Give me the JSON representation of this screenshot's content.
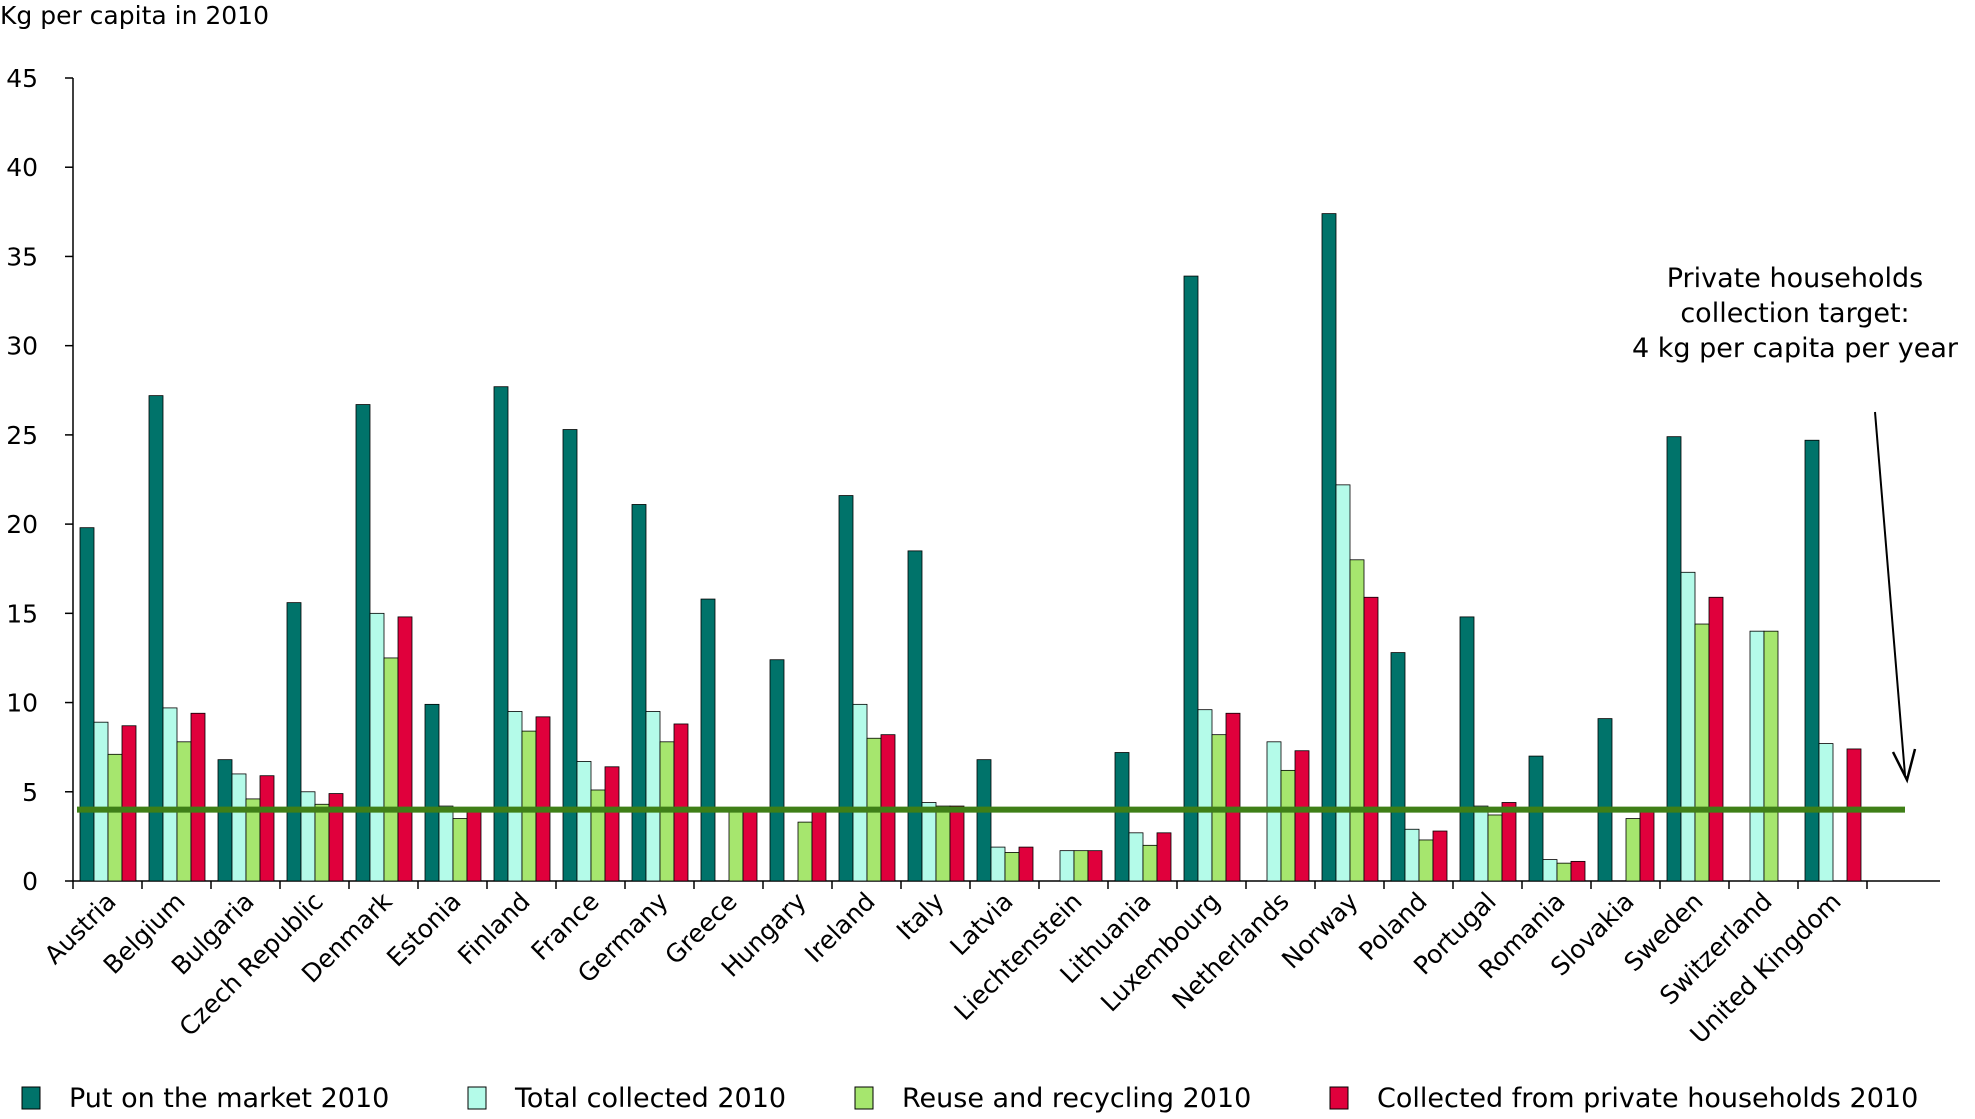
{
  "chart_data": {
    "type": "bar",
    "ylabel": "Kg per capita in 2010",
    "ylim": [
      0,
      45
    ],
    "yticks": [
      0,
      5,
      10,
      15,
      20,
      25,
      30,
      35,
      40,
      45
    ],
    "grid": false,
    "legend_position": "bottom",
    "categories": [
      "Austria",
      "Belgium",
      "Bulgaria",
      "Czech Republic",
      "Denmark",
      "Estonia",
      "Finland",
      "France",
      "Germany",
      "Greece",
      "Hungary",
      "Ireland",
      "Italy",
      "Latvia",
      "Liechtenstein",
      "Lithuania",
      "Luxembourg",
      "Netherlands",
      "Norway",
      "Poland",
      "Portugal",
      "Romania",
      "Slovakia",
      "Sweden",
      "Switzerland",
      "United Kingdom"
    ],
    "series": [
      {
        "name": "Put on the market 2010",
        "color": "#00736a",
        "values": [
          19.8,
          27.2,
          6.8,
          15.6,
          26.7,
          9.9,
          27.7,
          25.3,
          21.1,
          15.8,
          12.4,
          21.6,
          18.5,
          6.8,
          null,
          7.2,
          33.9,
          null,
          37.4,
          12.8,
          14.8,
          7.0,
          9.1,
          24.9,
          null,
          24.7
        ]
      },
      {
        "name": "Total collected 2010",
        "color": "#b4fbe9",
        "values": [
          8.9,
          9.7,
          6.0,
          5.0,
          15.0,
          4.2,
          9.5,
          6.7,
          9.5,
          null,
          null,
          9.9,
          4.4,
          1.9,
          1.7,
          2.7,
          9.6,
          7.8,
          22.2,
          2.9,
          4.2,
          1.2,
          null,
          17.3,
          14.0,
          7.7
        ]
      },
      {
        "name": "Reuse and recycling 2010",
        "color": "#a6e66e",
        "values": [
          7.1,
          7.8,
          4.6,
          4.3,
          12.5,
          3.5,
          8.4,
          5.1,
          7.8,
          4.0,
          3.3,
          8.0,
          4.2,
          1.6,
          1.7,
          2.0,
          8.2,
          6.2,
          18.0,
          2.3,
          3.7,
          1.0,
          3.5,
          14.4,
          14.0,
          null
        ]
      },
      {
        "name": "Collected from private households 2010",
        "color": "#e0003c",
        "values": [
          8.7,
          9.4,
          5.9,
          4.9,
          14.8,
          4.1,
          9.2,
          6.4,
          8.8,
          4.0,
          4.0,
          8.2,
          4.2,
          1.9,
          1.7,
          2.7,
          9.4,
          7.3,
          15.9,
          2.8,
          4.4,
          1.1,
          4.0,
          15.9,
          null,
          7.4
        ]
      }
    ],
    "target_line": {
      "value": 4,
      "color": "#3f7f17"
    },
    "annotation": {
      "lines": [
        "Private households",
        "collection target:",
        "4 kg per capita per year"
      ]
    }
  }
}
